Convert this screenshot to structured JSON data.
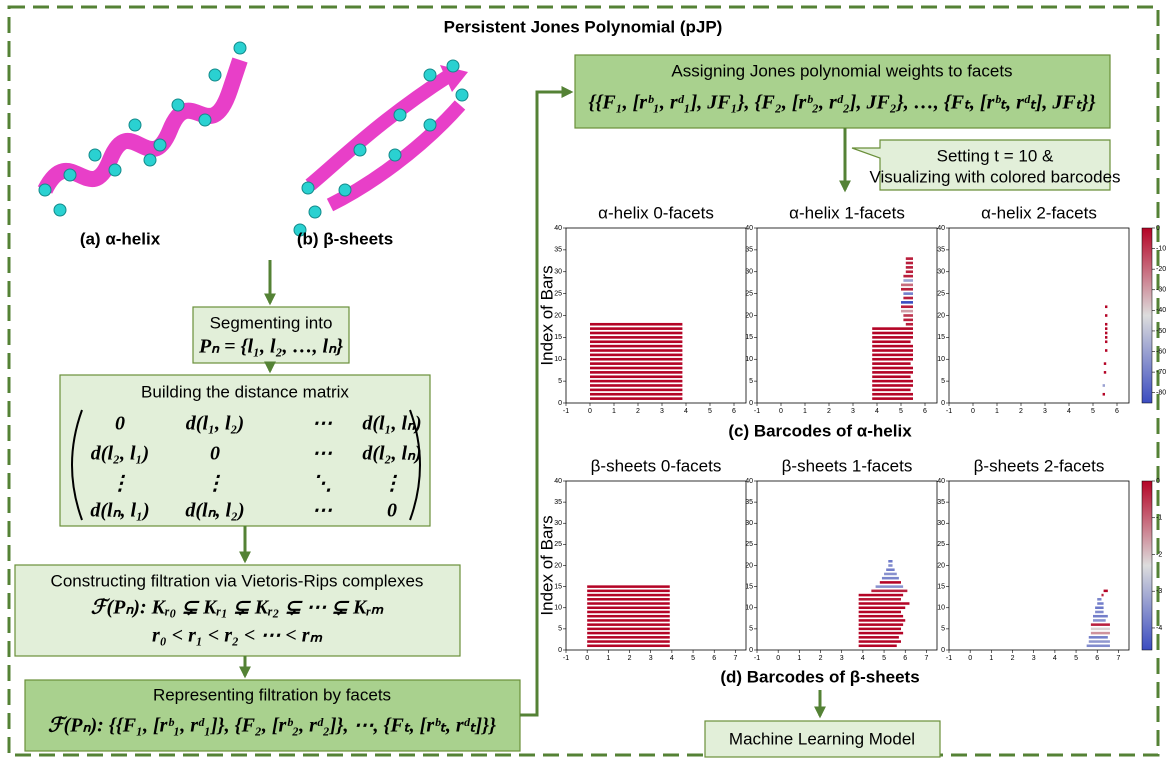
{
  "title": "Persistent Jones Polynomial (pJP)",
  "structures": [
    {
      "label": "(a) α-helix"
    },
    {
      "label": "(b) β-sheets"
    }
  ],
  "segment": {
    "heading": "Segmenting into",
    "formula": "Pₙ = {l₁, l₂, …, lₙ}"
  },
  "distance": {
    "heading": "Building the distance matrix",
    "matrix": [
      [
        "0",
        "d(l₁, l₂)",
        "⋯",
        "d(l₁, lₙ)"
      ],
      [
        "d(l₂, l₁)",
        "0",
        "⋯",
        "d(l₂, lₙ)"
      ],
      [
        "⋮",
        "⋮",
        "⋱",
        "⋮"
      ],
      [
        "d(lₙ, l₁)",
        "d(lₙ, l₂)",
        "⋯",
        "0"
      ]
    ]
  },
  "filtration": {
    "heading": "Constructing filtration via Vietoris-Rips complexes",
    "lines": [
      "ℱ(Pₙ):  Kᵣ₀ ⊊ Kᵣ₁ ⊊ Kᵣ₂ ⊊ ⋯ ⊊ Kᵣₘ",
      "r₀ < r₁ < r₂ < ⋯ < rₘ"
    ]
  },
  "facets": {
    "heading": "Representing filtration by facets",
    "formula": "ℱ(Pₙ): {{F₁, [rᵇ₁, rᵈ₁]}, {F₂, [rᵇ₂, rᵈ₂]}, ⋯, {Fₜ, [rᵇₜ, rᵈₜ]}}"
  },
  "weights": {
    "heading": "Assigning Jones polynomial weights to facets",
    "formula": "{{F₁, [rᵇ₁, rᵈ₁], JF₁}, {F₂, [rᵇ₂, rᵈ₂], JF₂}, …, {Fₜ, [rᵇₜ, rᵈₜ], JFₜ}}"
  },
  "callout": [
    "Setting t = 10 &",
    "Visualizing with colored barcodes"
  ],
  "rows": [
    {
      "caption": "(c) Barcodes of α-helix",
      "y_label": "Index of Bars",
      "colorbar": {
        "clim": [
          -85,
          0
        ],
        "cticks": [
          0,
          -10,
          -20,
          -30,
          -40,
          -50,
          -60,
          -70,
          -80
        ]
      },
      "panels": [
        {
          "title": "α-helix 0-facets",
          "xlim": [
            -1,
            6.5
          ],
          "xticks": [
            -1,
            0,
            1,
            2,
            3,
            4,
            5,
            6
          ],
          "ylim": [
            0,
            40
          ],
          "yticks": [
            0,
            5,
            10,
            15,
            20,
            25,
            30,
            35,
            40
          ],
          "index": [
            1,
            2,
            3,
            4,
            5,
            6,
            7,
            8,
            9,
            10,
            11,
            12,
            13,
            14,
            15,
            16,
            17,
            18
          ],
          "birth": [
            0,
            0,
            0,
            0,
            0,
            0,
            0,
            0,
            0,
            0,
            0,
            0,
            0,
            0,
            0,
            0,
            0,
            0
          ],
          "death": [
            3.85,
            3.85,
            3.85,
            3.85,
            3.85,
            3.85,
            3.85,
            3.85,
            3.85,
            3.85,
            3.85,
            3.85,
            3.85,
            3.85,
            3.85,
            3.85,
            3.85,
            3.85
          ],
          "weight": [
            0,
            0,
            0,
            0,
            0,
            0,
            0,
            0,
            0,
            0,
            0,
            0,
            0,
            0,
            0,
            0,
            0,
            0
          ]
        },
        {
          "title": "α-helix 1-facets",
          "xlim": [
            -1,
            6.5
          ],
          "xticks": [
            -1,
            0,
            1,
            2,
            3,
            4,
            5,
            6
          ],
          "ylim": [
            0,
            40
          ],
          "yticks": [
            0,
            5,
            10,
            15,
            20,
            25,
            30,
            35,
            40
          ],
          "index": [
            1,
            2,
            3,
            4,
            5,
            6,
            7,
            8,
            9,
            10,
            11,
            12,
            13,
            14,
            15,
            16,
            17,
            18,
            19,
            20,
            21,
            22,
            23,
            24,
            25,
            26,
            27,
            28,
            29,
            30,
            31,
            32,
            33
          ],
          "birth": [
            3.8,
            3.8,
            3.8,
            3.8,
            3.8,
            3.8,
            3.8,
            3.8,
            3.8,
            3.8,
            3.8,
            3.8,
            3.8,
            3.8,
            3.8,
            3.8,
            3.8,
            5.2,
            5.1,
            5.1,
            5.0,
            5.0,
            5.0,
            5.1,
            5.1,
            5.0,
            5.0,
            5.1,
            5.1,
            5.2,
            5.2,
            5.2,
            5.2
          ],
          "death": [
            5.5,
            5.5,
            5.4,
            5.5,
            5.5,
            5.4,
            5.5,
            5.5,
            5.4,
            5.5,
            5.5,
            5.5,
            5.5,
            5.4,
            5.5,
            5.5,
            5.5,
            5.5,
            5.5,
            5.5,
            5.5,
            5.5,
            5.5,
            5.5,
            5.5,
            5.5,
            5.5,
            5.5,
            5.5,
            5.5,
            5.5,
            5.5,
            5.5
          ],
          "weight": [
            0,
            0,
            0,
            0,
            0,
            0,
            0,
            0,
            0,
            0,
            0,
            0,
            0,
            0,
            0,
            0,
            0,
            -5,
            -5,
            -10,
            -30,
            -5,
            -85,
            -5,
            -70,
            -5,
            -20,
            -60,
            -5,
            -5,
            -5,
            -5,
            -5
          ]
        },
        {
          "title": "α-helix 2-facets",
          "xlim": [
            -1,
            6.5
          ],
          "xticks": [
            -1,
            0,
            1,
            2,
            3,
            4,
            5,
            6
          ],
          "ylim": [
            0,
            40
          ],
          "yticks": [
            0,
            5,
            10,
            15,
            20,
            25,
            30,
            35,
            40
          ],
          "index": [
            2,
            4,
            7,
            9,
            12,
            14,
            15,
            16,
            17,
            18,
            20,
            22
          ],
          "birth": [
            5.4,
            5.4,
            5.45,
            5.45,
            5.5,
            5.5,
            5.5,
            5.5,
            5.5,
            5.5,
            5.5,
            5.5
          ],
          "death": [
            5.5,
            5.5,
            5.55,
            5.55,
            5.6,
            5.6,
            5.6,
            5.6,
            5.6,
            5.6,
            5.6,
            5.6
          ],
          "weight": [
            0,
            -60,
            0,
            0,
            0,
            0,
            0,
            0,
            0,
            0,
            0,
            0
          ]
        }
      ]
    },
    {
      "caption": "(d) Barcodes of β-sheets",
      "y_label": "Index of Bars",
      "colorbar": {
        "clim": [
          -4.6,
          0
        ],
        "cticks": [
          0,
          -1,
          -2,
          -3,
          -4
        ]
      },
      "panels": [
        {
          "title": "β-sheets 0-facets",
          "xlim": [
            -1,
            7.5
          ],
          "xticks": [
            -1,
            0,
            1,
            2,
            3,
            4,
            5,
            6,
            7
          ],
          "ylim": [
            0,
            40
          ],
          "yticks": [
            0,
            5,
            10,
            15,
            20,
            25,
            30,
            35,
            40
          ],
          "index": [
            1,
            2,
            3,
            4,
            5,
            6,
            7,
            8,
            9,
            10,
            11,
            12,
            13,
            14,
            15
          ],
          "birth": [
            0,
            0,
            0,
            0,
            0,
            0,
            0,
            0,
            0,
            0,
            0,
            0,
            0,
            0,
            0
          ],
          "death": [
            3.9,
            3.9,
            3.9,
            3.9,
            3.9,
            3.9,
            3.9,
            3.9,
            3.9,
            3.9,
            3.9,
            3.9,
            3.9,
            3.9,
            3.9
          ],
          "weight": [
            0,
            0,
            0,
            0,
            0,
            0,
            0,
            0,
            0,
            0,
            0,
            0,
            0,
            0,
            0
          ]
        },
        {
          "title": "β-sheets 1-facets",
          "xlim": [
            -1,
            7.5
          ],
          "xticks": [
            -1,
            0,
            1,
            2,
            3,
            4,
            5,
            6,
            7
          ],
          "ylim": [
            0,
            40
          ],
          "yticks": [
            0,
            5,
            10,
            15,
            20,
            25,
            30,
            35,
            40
          ],
          "index": [
            1,
            2,
            3,
            4,
            5,
            6,
            7,
            8,
            9,
            10,
            11,
            12,
            13,
            14,
            15,
            16,
            17,
            18,
            19,
            20,
            21
          ],
          "birth": [
            3.8,
            3.8,
            3.8,
            3.8,
            3.8,
            3.8,
            3.8,
            3.8,
            3.8,
            3.8,
            3.8,
            3.8,
            3.8,
            4.4,
            4.6,
            4.8,
            4.9,
            5.0,
            5.1,
            5.2,
            5.2
          ],
          "death": [
            5.6,
            5.8,
            5.7,
            5.9,
            5.8,
            5.9,
            6.0,
            5.9,
            5.8,
            6.0,
            6.2,
            5.8,
            5.9,
            6.1,
            5.9,
            5.8,
            5.7,
            5.6,
            5.5,
            5.4,
            5.4
          ],
          "weight": [
            0,
            0,
            0,
            0,
            0,
            0,
            0,
            0,
            0,
            0,
            0,
            -0.2,
            0,
            -0.3,
            -3.5,
            0,
            -3.7,
            -3.5,
            -3.8,
            -3.6,
            -3.9
          ]
        },
        {
          "title": "β-sheets 2-facets",
          "xlim": [
            -1,
            7.5
          ],
          "xticks": [
            -1,
            0,
            1,
            2,
            3,
            4,
            5,
            6,
            7
          ],
          "ylim": [
            0,
            40
          ],
          "yticks": [
            0,
            5,
            10,
            15,
            20,
            25,
            30,
            35,
            40
          ],
          "index": [
            1,
            2,
            3,
            4,
            5,
            6,
            7,
            8,
            9,
            10,
            11,
            12,
            13,
            14
          ],
          "birth": [
            5.5,
            5.6,
            5.6,
            5.7,
            5.7,
            5.7,
            5.8,
            5.8,
            5.9,
            5.9,
            6.0,
            6.0,
            6.2,
            6.3
          ],
          "death": [
            6.6,
            6.6,
            6.5,
            6.6,
            6.6,
            6.6,
            6.4,
            6.5,
            6.3,
            6.3,
            6.3,
            6.2,
            6.3,
            6.5
          ],
          "weight": [
            -3.6,
            -3.4,
            -3.8,
            -1.5,
            -2.2,
            -0.3,
            -3.5,
            -3.8,
            -3.6,
            -3.9,
            -3.8,
            -3.7,
            -0.3,
            0
          ]
        }
      ]
    }
  ],
  "model": "Machine Learning Model"
}
